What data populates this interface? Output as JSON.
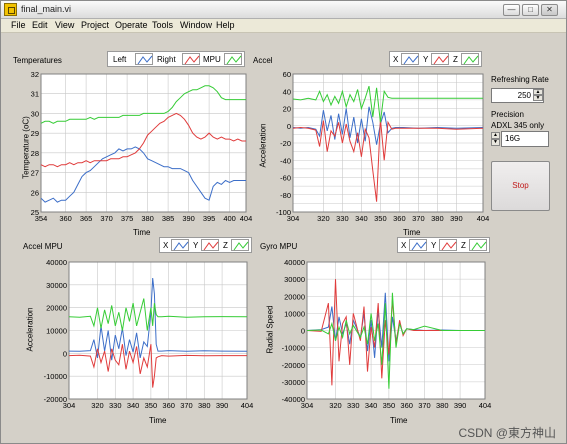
{
  "window": {
    "title": "final_main.vi",
    "min_glyph": "—",
    "max_glyph": "□",
    "close_glyph": "✕"
  },
  "menu": [
    "File",
    "Edit",
    "View",
    "Project",
    "Operate",
    "Tools",
    "Window",
    "Help"
  ],
  "colors": {
    "s1": "#3c6ec8",
    "s2": "#e03c3c",
    "s3": "#36cc36",
    "plot_bg": "#ffffff",
    "grid": "#c8c8c8"
  },
  "controls": {
    "refresh_label": "Refreshing Rate",
    "refresh_value": "250",
    "precision_label": "Precision",
    "precision_sub": "ADXL 345 only",
    "precision_value": "16G",
    "stop_label": "Stop"
  },
  "watermark": "CSDN @東方神山",
  "charts": {
    "temps": {
      "title": "Temperatures",
      "xlabel": "Time",
      "ylabel": "Temperature (oC)",
      "xlim": [
        354,
        404
      ],
      "ylim": [
        25,
        32
      ],
      "xticks": [
        354,
        360,
        365,
        370,
        375,
        380,
        385,
        390,
        395,
        400,
        404
      ],
      "yticks": [
        25,
        26,
        27,
        28,
        29,
        30,
        31,
        32
      ],
      "legend": [
        "Left",
        "Right",
        "MPU"
      ],
      "series": [
        {
          "name": "Left",
          "x": [
            354,
            355,
            356,
            357,
            358,
            359,
            360,
            361,
            362,
            363,
            364,
            365,
            366,
            367,
            368,
            369,
            370,
            371,
            372,
            373,
            374,
            375,
            376,
            377,
            378,
            379,
            380,
            381,
            382,
            383,
            384,
            385,
            386,
            387,
            388,
            389,
            390,
            391,
            392,
            393,
            394,
            395,
            396,
            397,
            398,
            399,
            400,
            401,
            402,
            403,
            404
          ],
          "y": [
            25.7,
            25.5,
            25.6,
            25.7,
            25.5,
            25.6,
            25.6,
            25.8,
            26.0,
            26.4,
            26.8,
            27.0,
            27.1,
            27.3,
            27.5,
            27.7,
            27.8,
            27.9,
            28.0,
            28.2,
            28.1,
            28.2,
            28.2,
            28.3,
            28.2,
            28.0,
            27.7,
            27.6,
            27.5,
            27.4,
            27.3,
            27.3,
            27.2,
            27.2,
            27.2,
            27.1,
            27.0,
            26.6,
            26.3,
            26.0,
            25.7,
            25.6,
            26.3,
            26.5,
            26.4,
            26.6,
            26.5,
            26.6,
            26.6,
            26.6,
            26.6
          ]
        },
        {
          "name": "Right",
          "x": [
            354,
            355,
            356,
            357,
            358,
            359,
            360,
            361,
            362,
            363,
            364,
            365,
            366,
            367,
            368,
            369,
            370,
            371,
            372,
            373,
            374,
            375,
            376,
            377,
            378,
            379,
            380,
            381,
            382,
            383,
            384,
            385,
            386,
            387,
            388,
            389,
            390,
            391,
            392,
            393,
            394,
            395,
            396,
            397,
            398,
            399,
            400,
            401,
            402,
            403,
            404
          ],
          "y": [
            27.4,
            27.3,
            27.4,
            27.4,
            27.3,
            27.4,
            27.4,
            27.5,
            27.4,
            27.5,
            27.5,
            27.6,
            27.5,
            27.6,
            27.6,
            27.6,
            27.6,
            27.7,
            27.7,
            27.7,
            27.8,
            27.8,
            27.9,
            28.0,
            28.2,
            28.5,
            28.9,
            29.1,
            29.3,
            29.5,
            29.6,
            29.8,
            29.9,
            30.0,
            29.9,
            29.7,
            29.4,
            29.0,
            28.8,
            28.7,
            28.8,
            29.0,
            28.8,
            28.7,
            28.8,
            28.7,
            28.7,
            28.6,
            28.7,
            28.6,
            28.6
          ]
        },
        {
          "name": "MPU",
          "x": [
            354,
            355,
            356,
            357,
            358,
            359,
            360,
            361,
            362,
            363,
            364,
            365,
            366,
            367,
            368,
            369,
            370,
            371,
            372,
            373,
            374,
            375,
            376,
            377,
            378,
            379,
            380,
            381,
            382,
            383,
            384,
            385,
            386,
            387,
            388,
            389,
            390,
            391,
            392,
            393,
            394,
            395,
            396,
            397,
            398,
            399,
            400,
            401,
            402,
            403,
            404
          ],
          "y": [
            29.5,
            29.6,
            29.6,
            29.5,
            29.6,
            29.6,
            29.6,
            29.7,
            29.7,
            29.7,
            29.7,
            29.7,
            29.8,
            29.7,
            29.8,
            29.8,
            29.8,
            29.8,
            29.8,
            29.8,
            29.9,
            29.9,
            29.9,
            29.9,
            29.9,
            30.0,
            30.0,
            30.0,
            30.0,
            30.0,
            30.0,
            30.1,
            30.3,
            30.6,
            30.8,
            31.0,
            31.1,
            31.2,
            31.2,
            31.3,
            31.4,
            31.4,
            31.3,
            31.1,
            30.8,
            30.7,
            30.7,
            30.7,
            30.7,
            30.7,
            30.7
          ]
        }
      ]
    },
    "accel": {
      "title": "Accel",
      "xlabel": "Time",
      "ylabel": "Acceleration",
      "xlim": [
        304,
        404
      ],
      "ylim": [
        -100,
        60
      ],
      "xticks": [
        304,
        320,
        330,
        340,
        350,
        360,
        370,
        380,
        390,
        404
      ],
      "yticks": [
        -100,
        -90,
        -80,
        -70,
        -60,
        -50,
        -40,
        -30,
        -20,
        -10,
        0,
        10,
        20,
        30,
        40,
        50,
        60
      ],
      "ytick_labels_shown": [
        -100,
        -80,
        -60,
        -40,
        -20,
        0,
        20,
        40,
        60
      ],
      "legend": [
        "X",
        "Y",
        "Z"
      ],
      "series": [
        {
          "name": "X",
          "x": [
            304,
            308,
            312,
            316,
            318,
            320,
            322,
            324,
            326,
            328,
            330,
            332,
            334,
            336,
            338,
            340,
            342,
            344,
            346,
            348,
            350,
            352,
            354,
            356,
            358,
            362,
            370,
            380,
            390,
            404
          ],
          "y": [
            -2,
            -3,
            -2,
            -4,
            -12,
            18,
            -6,
            12,
            -16,
            14,
            -10,
            20,
            -14,
            10,
            -20,
            8,
            -18,
            22,
            4,
            -22,
            2,
            16,
            -8,
            -3,
            -2,
            -2,
            -3,
            -2,
            -3,
            -2
          ]
        },
        {
          "name": "Y",
          "x": [
            304,
            308,
            312,
            316,
            318,
            320,
            322,
            324,
            326,
            328,
            330,
            332,
            334,
            336,
            338,
            340,
            342,
            344,
            346,
            348,
            350,
            352,
            354,
            356,
            358,
            362,
            370,
            380,
            390,
            404
          ],
          "y": [
            -3,
            -2,
            -3,
            -5,
            -24,
            6,
            -30,
            -6,
            -12,
            4,
            -20,
            2,
            -18,
            -30,
            -8,
            -36,
            -4,
            -14,
            -52,
            -88,
            8,
            -40,
            4,
            -4,
            -3,
            -3,
            -3,
            -3,
            -4,
            -3
          ]
        },
        {
          "name": "Z",
          "x": [
            304,
            308,
            312,
            316,
            318,
            320,
            322,
            324,
            326,
            328,
            330,
            332,
            334,
            336,
            338,
            340,
            342,
            344,
            346,
            348,
            350,
            352,
            354,
            356,
            358,
            362,
            370,
            380,
            390,
            404
          ],
          "y": [
            31,
            30,
            32,
            30,
            40,
            28,
            36,
            24,
            34,
            26,
            40,
            22,
            36,
            28,
            42,
            20,
            32,
            46,
            10,
            44,
            4,
            40,
            33,
            32,
            32,
            32,
            32,
            32,
            32,
            32
          ]
        }
      ]
    },
    "accel_mpu": {
      "title": "Accel MPU",
      "xlabel": "Time",
      "ylabel": "Acceleration",
      "xlim": [
        304,
        404
      ],
      "ylim": [
        -20000,
        40000
      ],
      "xticks": [
        304,
        320,
        330,
        340,
        350,
        360,
        370,
        380,
        390,
        404
      ],
      "yticks": [
        -20000,
        -10000,
        0,
        10000,
        20000,
        30000,
        40000
      ],
      "legend": [
        "X",
        "Y",
        "Z"
      ],
      "series": [
        {
          "name": "X",
          "x": [
            304,
            310,
            316,
            318,
            320,
            322,
            324,
            326,
            328,
            330,
            332,
            334,
            336,
            338,
            340,
            342,
            344,
            346,
            348,
            350,
            351,
            352,
            353,
            354,
            356,
            360,
            370,
            380,
            390,
            404
          ],
          "y": [
            1000,
            900,
            1200,
            6000,
            -2000,
            12000,
            1000,
            10000,
            -3000,
            8000,
            2000,
            11000,
            -1000,
            6000,
            500,
            9000,
            -2000,
            5000,
            3000,
            18000,
            33000,
            26000,
            4000,
            1000,
            1000,
            1200,
            900,
            1100,
            1000,
            900
          ]
        },
        {
          "name": "Y",
          "x": [
            304,
            310,
            316,
            318,
            320,
            322,
            324,
            326,
            328,
            330,
            332,
            334,
            336,
            338,
            340,
            342,
            344,
            346,
            348,
            350,
            351,
            352,
            353,
            354,
            356,
            360,
            370,
            380,
            390,
            404
          ],
          "y": [
            -1000,
            -800,
            -1200,
            -6000,
            2000,
            -4000,
            1000,
            -8000,
            2000,
            -3000,
            -5000,
            4000,
            -7000,
            1000,
            -4000,
            3000,
            -9000,
            -2000,
            -6000,
            4000,
            -15000,
            -10000,
            -2000,
            -1500,
            -1000,
            -1200,
            -900,
            -1100,
            -1000,
            -1000
          ]
        },
        {
          "name": "Z",
          "x": [
            304,
            310,
            316,
            318,
            320,
            322,
            324,
            326,
            328,
            330,
            332,
            334,
            336,
            338,
            340,
            342,
            344,
            346,
            348,
            350,
            351,
            352,
            353,
            354,
            356,
            360,
            370,
            380,
            390,
            404
          ],
          "y": [
            16000,
            15800,
            16200,
            12000,
            20000,
            11000,
            19000,
            13000,
            21000,
            12000,
            18000,
            10000,
            20000,
            14000,
            22000,
            12000,
            18000,
            24000,
            10000,
            20000,
            12000,
            22000,
            17000,
            16000,
            16000,
            16200,
            15800,
            16000,
            16100,
            16000
          ]
        }
      ]
    },
    "gyro_mpu": {
      "title": "Gyro MPU",
      "xlabel": "Time",
      "ylabel": "Radial Speed",
      "xlim": [
        304,
        404
      ],
      "ylim": [
        -40000,
        40000
      ],
      "xticks": [
        304,
        320,
        330,
        340,
        350,
        360,
        370,
        380,
        390,
        404
      ],
      "yticks": [
        -40000,
        -30000,
        -20000,
        -10000,
        0,
        10000,
        20000,
        30000,
        40000
      ],
      "legend": [
        "X",
        "Y",
        "Z"
      ],
      "series": [
        {
          "name": "X",
          "x": [
            304,
            312,
            316,
            318,
            320,
            322,
            324,
            326,
            328,
            330,
            334,
            336,
            338,
            340,
            342,
            344,
            346,
            348,
            350,
            352,
            354,
            356,
            358,
            360,
            364,
            370,
            380,
            390,
            404
          ],
          "y": [
            0,
            500,
            2000,
            14000,
            -6000,
            8000,
            -2000,
            4000,
            -8000,
            6000,
            -4000,
            10000,
            -12000,
            6000,
            -16000,
            12000,
            -10000,
            22000,
            -18000,
            8000,
            -6000,
            4000,
            -2000,
            1000,
            500,
            0,
            300,
            0,
            0
          ]
        },
        {
          "name": "Y",
          "x": [
            304,
            312,
            316,
            318,
            320,
            322,
            324,
            326,
            328,
            330,
            334,
            336,
            338,
            340,
            342,
            344,
            346,
            348,
            350,
            352,
            354,
            356,
            358,
            360,
            364,
            370,
            380,
            390,
            404
          ],
          "y": [
            0,
            -500,
            16000,
            -32000,
            30000,
            -18000,
            4000,
            8000,
            -20000,
            10000,
            -6000,
            14000,
            -24000,
            2000,
            -10000,
            16000,
            -28000,
            6000,
            -14000,
            18000,
            -8000,
            6000,
            -3000,
            1000,
            0,
            0,
            0,
            0,
            0
          ]
        },
        {
          "name": "Z",
          "x": [
            304,
            312,
            316,
            318,
            320,
            322,
            324,
            326,
            328,
            330,
            334,
            336,
            338,
            340,
            342,
            344,
            346,
            348,
            350,
            352,
            354,
            356,
            358,
            360,
            364,
            370,
            380,
            390,
            404
          ],
          "y": [
            0,
            300,
            -2000,
            4000,
            -6000,
            2000,
            -4000,
            6000,
            -2000,
            3000,
            -4000,
            2000,
            -8000,
            10000,
            -6000,
            4000,
            -20000,
            16000,
            -34000,
            22000,
            -10000,
            4000,
            -2000,
            1000,
            500,
            2500,
            0,
            0,
            0
          ]
        }
      ]
    }
  }
}
